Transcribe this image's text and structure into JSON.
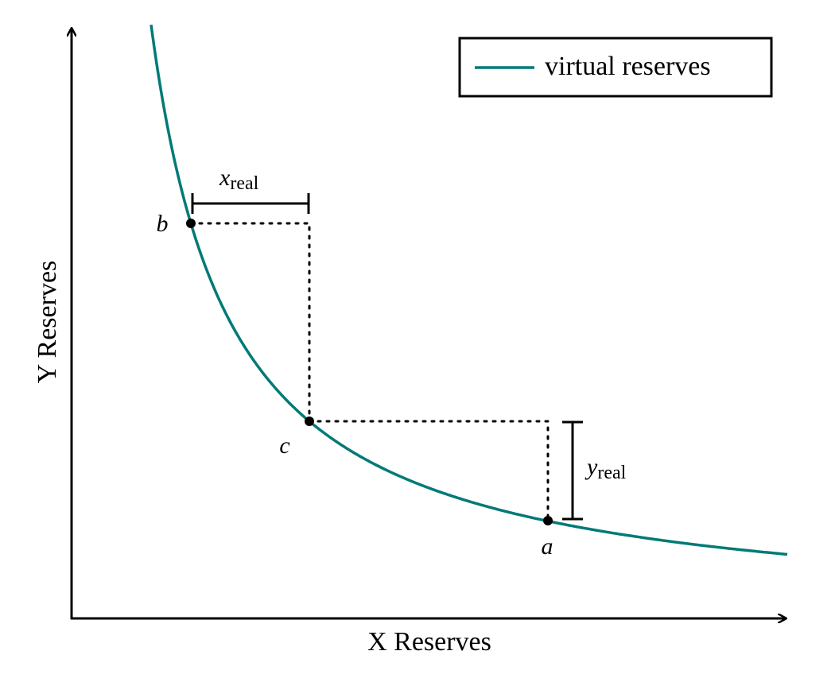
{
  "legend": {
    "label": "virtual reserves"
  },
  "axes": {
    "x_label": "X Reserves",
    "y_label": "Y Reserves"
  },
  "points": {
    "a": "a",
    "b": "b",
    "c": "c"
  },
  "brackets": {
    "x": {
      "main": "x",
      "sub": "real"
    },
    "y": {
      "main": "y",
      "sub": "real"
    }
  }
}
